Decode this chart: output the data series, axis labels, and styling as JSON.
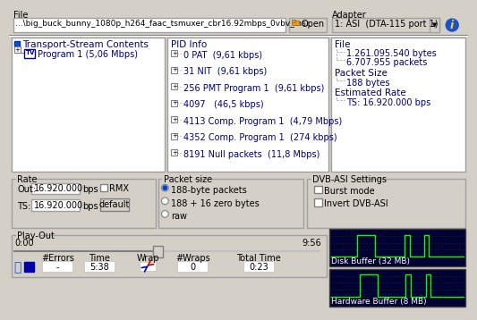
{
  "bg_color": "#d4d0c8",
  "panel_bg": "#ffffff",
  "border_color": "#808080",
  "text_dark_blue": "#000080",
  "text_black": "#000000",
  "file_label": "File",
  "file_path": "...\\big_buck_bunny_1080p_h264_faac_tsmuxer_cbr16.92mbps_0vbv_ins..",
  "open_btn": "Open",
  "adapter_label": "Adapter",
  "adapter_value": "1: ASI  (DTA-115 port 1)",
  "tree_title": "Transport-Stream Contents",
  "tree_item": "Program 1 (5,06 Mbps)",
  "pid_title": "PID Info",
  "pid_items": [
    "0 PAT  (9,61 kbps)",
    "31 NIT  (9,61 kbps)",
    "256 PMT Program 1  (9,61 kbps)",
    "4097   (46,5 kbps)",
    "4113 Comp. Program 1  (4,79 Mbps)",
    "4352 Comp. Program 1  (274 kbps)",
    "8191 Null packets  (11,8 Mbps)"
  ],
  "file_info_title": "File",
  "file_info_items": [
    "1.261.095.540 bytes",
    "6.707.955 packets"
  ],
  "packet_size_label": "Packet Size",
  "packet_size_value": "188 bytes",
  "estimated_rate_label": "Estimated Rate",
  "estimated_rate_value": "TS: 16.920.000 bps",
  "rate_label": "Rate",
  "rate_out_label": "Out:",
  "rate_out_value": "16.920.000",
  "rate_out_unit": "bps",
  "rate_rmx": "RMX",
  "rate_ts_label": "TS:",
  "rate_ts_value": "16.920.000",
  "rate_ts_unit": "bps",
  "rate_default_btn": "default",
  "packet_size_section": "Packet size",
  "packet_opts": [
    "188-byte packets",
    "188 + 16 zero bytes",
    "raw"
  ],
  "dvb_section": "DVB-ASI Settings",
  "dvb_opts": [
    "Burst mode",
    "Invert DVB-ASI"
  ],
  "playout_label": "Play-Out",
  "playout_start": "0:00",
  "playout_end": "9:56",
  "table_headers": [
    "#Errors",
    "Time",
    "Wrap",
    "#Wraps",
    "Total Time"
  ],
  "table_values": [
    "-",
    "5:38",
    "",
    "0",
    "0:23"
  ],
  "disk_buffer_label": "Disk Buffer (32 MB)",
  "hardware_buffer_label": "Hardware Buffer (8 MB)",
  "scope_bg": "#000033",
  "scope_line_color": "#00ff00",
  "scope_grid_color": "#004400"
}
